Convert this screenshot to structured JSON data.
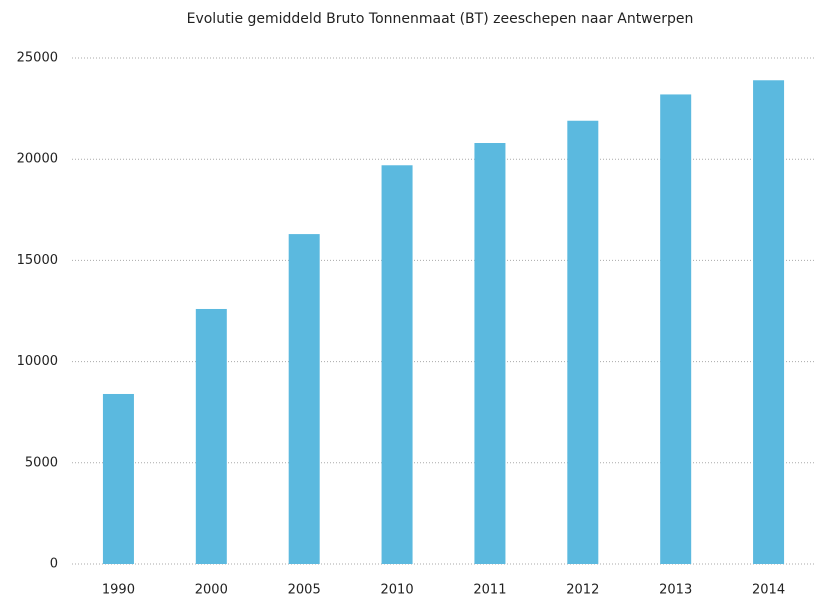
{
  "chart_data": {
    "type": "bar",
    "title": "Evolutie gemiddeld Bruto Tonnenmaat (BT) zeeschepen naar Antwerpen",
    "categories": [
      "1990",
      "2000",
      "2005",
      "2010",
      "2011",
      "2012",
      "2013",
      "2014"
    ],
    "values": [
      8400,
      12600,
      16300,
      19700,
      20800,
      21900,
      23200,
      23900
    ],
    "color": "#5bb9df",
    "ylim": [
      0,
      25000
    ],
    "yticks": [
      0,
      5000,
      10000,
      15000,
      20000,
      25000
    ],
    "grid": true
  }
}
